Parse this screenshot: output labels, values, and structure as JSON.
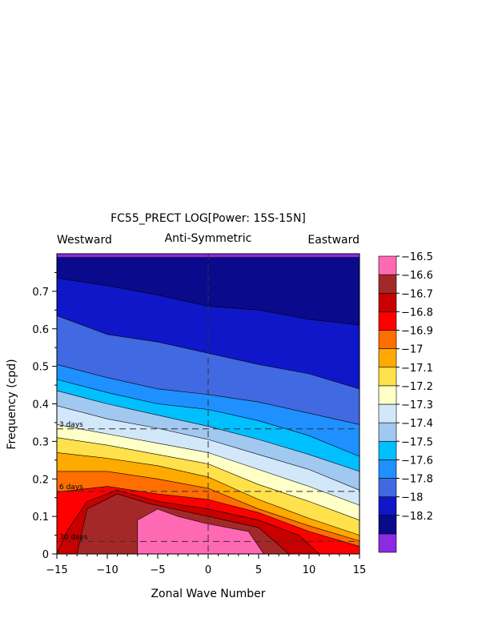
{
  "chart_data": {
    "type": "heatmap",
    "title": "FC55_PRECT LOG[Power: 15S-15N]",
    "subtitle": "Anti-Symmetric",
    "corner_labels": {
      "left": "Westward",
      "right": "Eastward"
    },
    "xlabel": "Zonal Wave Number",
    "ylabel": "Frequency (cpd)",
    "xlim": [
      -15,
      15
    ],
    "ylim": [
      0,
      0.8
    ],
    "x_ticks": [
      -15,
      -10,
      -5,
      0,
      5,
      10,
      15
    ],
    "x_tick_labels": [
      "−15",
      "−10",
      "−5",
      "0",
      "5",
      "10",
      "15"
    ],
    "y_ticks": [
      0,
      0.1,
      0.2,
      0.3,
      0.4,
      0.5,
      0.6,
      0.7
    ],
    "y_tick_labels": [
      "0",
      "0.1",
      "0.2",
      "0.3",
      "0.4",
      "0.5",
      "0.6",
      "0.7"
    ],
    "period_lines": [
      {
        "label": "3 days",
        "frequency": 0.3333
      },
      {
        "label": "6 days",
        "frequency": 0.1667
      },
      {
        "label": "30 days",
        "frequency": 0.0333
      }
    ],
    "contour_levels": [
      {
        "label": "",
        "color": "#8b2be2"
      },
      {
        "label": "−18.2",
        "color": "#0a0a8c"
      },
      {
        "label": "−18",
        "color": "#0f17c8"
      },
      {
        "label": "−17.8",
        "color": "#4169e1"
      },
      {
        "label": "−17.6",
        "color": "#1e90ff"
      },
      {
        "label": "−17.5",
        "color": "#00bfff"
      },
      {
        "label": "−17.4",
        "color": "#a0c8f0"
      },
      {
        "label": "−17.3",
        "color": "#d2e8fa"
      },
      {
        "label": "−17.2",
        "color": "#ffffc8"
      },
      {
        "label": "−17.1",
        "color": "#ffe14b"
      },
      {
        "label": "−17",
        "color": "#ffaa00"
      },
      {
        "label": "−16.9",
        "color": "#ff6e00"
      },
      {
        "label": "−16.8",
        "color": "#ff0000"
      },
      {
        "label": "−16.7",
        "color": "#c80000"
      },
      {
        "label": "−16.6",
        "color": "#a52828"
      },
      {
        "label": "−16.5",
        "color": "#ff69b4"
      }
    ],
    "boundaries": [
      {
        "level": 1,
        "points": [
          [
            -15,
            0.79
          ],
          [
            15,
            0.79
          ]
        ]
      },
      {
        "level": 2,
        "points": [
          [
            -15,
            0.735
          ],
          [
            -10,
            0.715
          ],
          [
            -5,
            0.69
          ],
          [
            0,
            0.66
          ],
          [
            5,
            0.65
          ],
          [
            10,
            0.625
          ],
          [
            15,
            0.61
          ]
        ]
      },
      {
        "level": 3,
        "points": [
          [
            -15,
            0.635
          ],
          [
            -10,
            0.585
          ],
          [
            -5,
            0.565
          ],
          [
            0,
            0.535
          ],
          [
            5,
            0.505
          ],
          [
            10,
            0.48
          ],
          [
            15,
            0.44
          ]
        ]
      },
      {
        "level": 4,
        "points": [
          [
            -15,
            0.505
          ],
          [
            -10,
            0.47
          ],
          [
            -5,
            0.44
          ],
          [
            0,
            0.425
          ],
          [
            5,
            0.405
          ],
          [
            10,
            0.375
          ],
          [
            15,
            0.345
          ]
        ]
      },
      {
        "level": 5,
        "points": [
          [
            -15,
            0.465
          ],
          [
            -10,
            0.43
          ],
          [
            -5,
            0.4
          ],
          [
            0,
            0.385
          ],
          [
            5,
            0.355
          ],
          [
            10,
            0.315
          ],
          [
            15,
            0.26
          ]
        ]
      },
      {
        "level": 6,
        "points": [
          [
            -15,
            0.435
          ],
          [
            -10,
            0.4
          ],
          [
            -5,
            0.37
          ],
          [
            0,
            0.34
          ],
          [
            5,
            0.305
          ],
          [
            10,
            0.265
          ],
          [
            15,
            0.22
          ]
        ]
      },
      {
        "level": 7,
        "points": [
          [
            -15,
            0.395
          ],
          [
            -10,
            0.36
          ],
          [
            -5,
            0.335
          ],
          [
            0,
            0.305
          ],
          [
            5,
            0.265
          ],
          [
            10,
            0.225
          ],
          [
            15,
            0.17
          ]
        ]
      },
      {
        "level": 8,
        "points": [
          [
            -15,
            0.345
          ],
          [
            -10,
            0.32
          ],
          [
            -5,
            0.295
          ],
          [
            0,
            0.27
          ],
          [
            5,
            0.225
          ],
          [
            10,
            0.18
          ],
          [
            15,
            0.13
          ]
        ]
      },
      {
        "level": 9,
        "points": [
          [
            -15,
            0.31
          ],
          [
            -10,
            0.29
          ],
          [
            -5,
            0.265
          ],
          [
            0,
            0.24
          ],
          [
            5,
            0.185
          ],
          [
            10,
            0.14
          ],
          [
            15,
            0.09
          ]
        ]
      },
      {
        "level": 10,
        "points": [
          [
            -15,
            0.27
          ],
          [
            -10,
            0.255
          ],
          [
            -5,
            0.235
          ],
          [
            0,
            0.205
          ],
          [
            5,
            0.145
          ],
          [
            10,
            0.095
          ],
          [
            15,
            0.05
          ]
        ]
      },
      {
        "level": 11,
        "points": [
          [
            -15,
            0.22
          ],
          [
            -10,
            0.22
          ],
          [
            -5,
            0.2
          ],
          [
            0,
            0.175
          ],
          [
            5,
            0.12
          ],
          [
            10,
            0.075
          ],
          [
            15,
            0.035
          ]
        ]
      },
      {
        "level": 12,
        "points": [
          [
            -15,
            0.165
          ],
          [
            -10,
            0.18
          ],
          [
            -5,
            0.16
          ],
          [
            0,
            0.145
          ],
          [
            5,
            0.11
          ],
          [
            10,
            0.06
          ],
          [
            15,
            0.02
          ]
        ]
      },
      {
        "level": 13,
        "points": [
          [
            -15,
            0.0
          ],
          [
            -14,
            0.06
          ],
          [
            -12,
            0.14
          ],
          [
            -9,
            0.17
          ],
          [
            -5,
            0.14
          ],
          [
            0,
            0.12
          ],
          [
            5,
            0.09
          ],
          [
            9,
            0.05
          ],
          [
            11,
            0.0
          ]
        ]
      },
      {
        "level": 14,
        "points": [
          [
            -13,
            0.0
          ],
          [
            -12,
            0.12
          ],
          [
            -9,
            0.16
          ],
          [
            -6,
            0.135
          ],
          [
            0,
            0.1
          ],
          [
            5,
            0.07
          ],
          [
            8,
            0.0
          ]
        ]
      },
      {
        "level": 15,
        "points": [
          [
            -7,
            0.0
          ],
          [
            -7,
            0.09
          ],
          [
            -5,
            0.12
          ],
          [
            -3,
            0.1
          ],
          [
            0,
            0.08
          ],
          [
            4,
            0.06
          ],
          [
            5.5,
            0.0
          ]
        ]
      }
    ]
  }
}
